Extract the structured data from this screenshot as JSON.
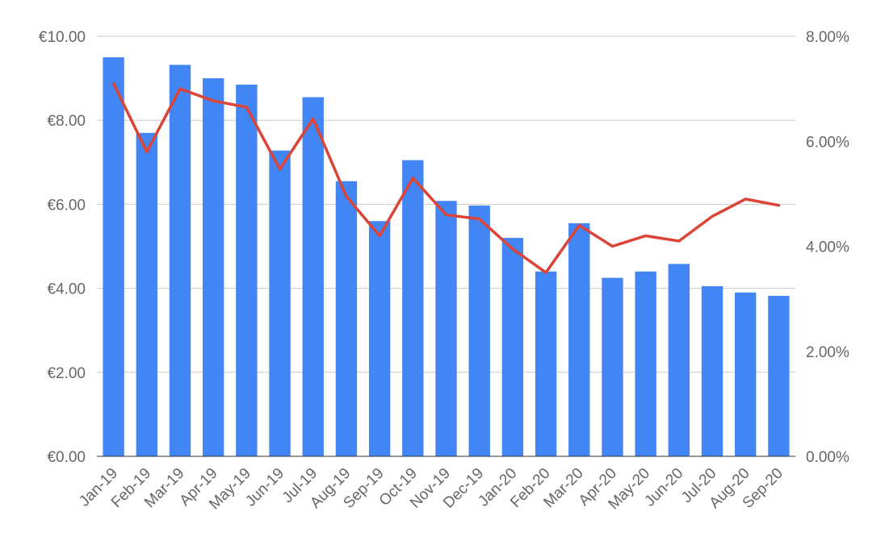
{
  "chart_data": {
    "type": "bar",
    "categories": [
      "Jan-19",
      "Feb-19",
      "Mar-19",
      "Apr-19",
      "May-19",
      "Jun-19",
      "Jul-19",
      "Aug-19",
      "Sep-19",
      "Oct-19",
      "Nov-19",
      "Dec-19",
      "Jan-20",
      "Feb-20",
      "Mar-20",
      "Apr-20",
      "May-20",
      "Jun-20",
      "Jul-20",
      "Aug-20",
      "Sep-20"
    ],
    "series": [
      {
        "type": "bar",
        "axis": "left",
        "color": "#4285f4",
        "values": [
          9.5,
          7.7,
          9.32,
          9.0,
          8.85,
          7.28,
          8.55,
          6.55,
          5.6,
          7.05,
          6.08,
          5.97,
          5.2,
          4.4,
          5.55,
          4.25,
          4.4,
          4.58,
          4.05,
          3.9,
          3.82
        ]
      },
      {
        "type": "line",
        "axis": "right",
        "color": "#db4437",
        "values": [
          0.071,
          0.058,
          0.07,
          0.0677,
          0.0665,
          0.0547,
          0.0643,
          0.0495,
          0.042,
          0.053,
          0.046,
          0.0452,
          0.0395,
          0.035,
          0.044,
          0.04,
          0.042,
          0.041,
          0.0457,
          0.049,
          0.0478
        ]
      }
    ],
    "y_left": {
      "ylim": [
        0,
        10
      ],
      "ticks": [
        0,
        2,
        4,
        6,
        8,
        10
      ],
      "tick_labels": [
        "€0.00",
        "€2.00",
        "€4.00",
        "€6.00",
        "€8.00",
        "€10.00"
      ]
    },
    "y_right": {
      "ylim": [
        0,
        0.08
      ],
      "ticks": [
        0,
        0.02,
        0.04,
        0.06,
        0.08
      ],
      "tick_labels": [
        "0.00%",
        "2.00%",
        "4.00%",
        "6.00%",
        "8.00%"
      ]
    },
    "grid": true,
    "legend": "none",
    "title": "",
    "xlabel": "",
    "ylabel": ""
  }
}
